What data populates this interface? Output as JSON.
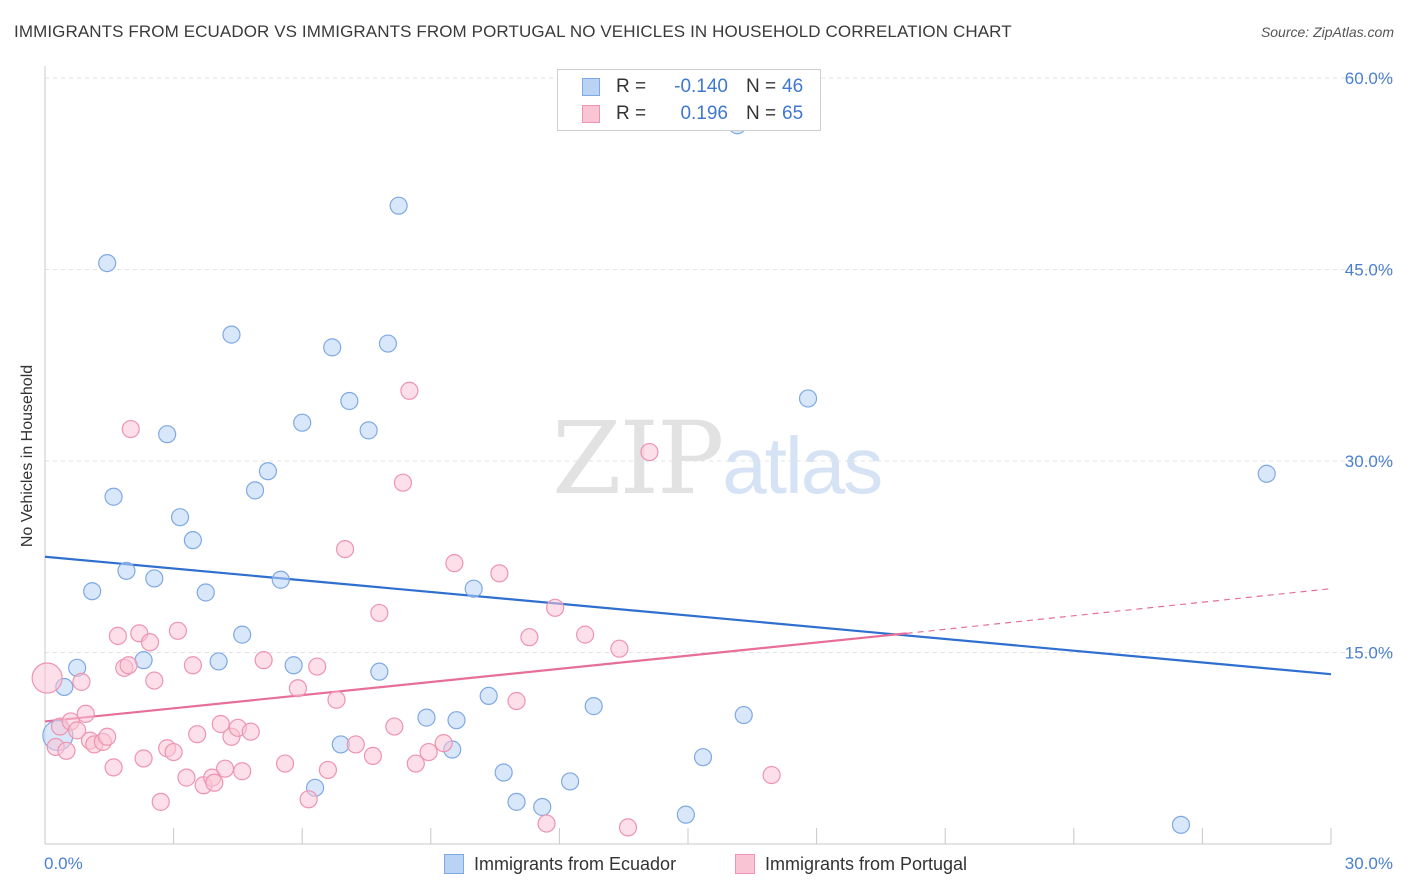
{
  "header": {
    "title": "IMMIGRANTS FROM ECUADOR VS IMMIGRANTS FROM PORTUGAL NO VEHICLES IN HOUSEHOLD CORRELATION CHART",
    "source": "Source: ZipAtlas.com"
  },
  "watermark": {
    "part1": "ZIP",
    "part2": "atlas"
  },
  "legend": {
    "rows": [
      {
        "r_label": "R =",
        "r_value": "-0.140",
        "n_label": "N =",
        "n_value": "46"
      },
      {
        "r_label": "R =",
        "r_value": "0.196",
        "n_label": "N =",
        "n_value": "65"
      }
    ]
  },
  "bottom_legend": {
    "items": [
      {
        "label": "Immigrants from Ecuador"
      },
      {
        "label": "Immigrants from Portugal"
      }
    ]
  },
  "colors": {
    "ecuador_fill": "#b9d3f5",
    "ecuador_stroke": "#7fa9e4",
    "ecuador_line": "#2f6fcf",
    "portugal_fill": "#f9c5d5",
    "portugal_stroke": "#ee94b1",
    "portugal_line": "#e76f97",
    "tick_text": "#4a7fd0",
    "grid": "#e3e3e3"
  },
  "chart_data": {
    "type": "scatter",
    "title": "IMMIGRANTS FROM ECUADOR VS IMMIGRANTS FROM PORTUGAL NO VEHICLES IN HOUSEHOLD CORRELATION CHART",
    "xlabel": "",
    "ylabel": "No Vehicles in Household",
    "xlim": [
      0,
      30
    ],
    "ylim": [
      0,
      60
    ],
    "x_tick_labels": [
      "0.0%",
      "30.0%"
    ],
    "y_ticks": [
      15,
      30,
      45,
      60
    ],
    "y_tick_labels": [
      "15.0%",
      "30.0%",
      "45.0%",
      "60.0%"
    ],
    "grid": true,
    "legend_position": "top-center",
    "series": [
      {
        "name": "Immigrants from Ecuador",
        "r": -0.14,
        "n": 46,
        "trend": {
          "x": [
            0,
            30
          ],
          "y": [
            22.5,
            13.3
          ]
        },
        "points": [
          [
            0.3,
            8.5
          ],
          [
            0.45,
            12.3
          ],
          [
            0.75,
            13.8
          ],
          [
            1.1,
            19.8
          ],
          [
            1.45,
            45.5
          ],
          [
            1.6,
            27.2
          ],
          [
            1.9,
            21.4
          ],
          [
            2.3,
            14.4
          ],
          [
            2.55,
            20.8
          ],
          [
            2.85,
            32.1
          ],
          [
            3.15,
            25.6
          ],
          [
            3.45,
            23.8
          ],
          [
            3.75,
            19.7
          ],
          [
            4.05,
            14.3
          ],
          [
            4.35,
            39.9
          ],
          [
            4.6,
            16.4
          ],
          [
            4.9,
            27.7
          ],
          [
            5.2,
            29.2
          ],
          [
            5.5,
            20.7
          ],
          [
            5.8,
            14.0
          ],
          [
            6.0,
            33.0
          ],
          [
            6.3,
            4.4
          ],
          [
            6.7,
            38.9
          ],
          [
            6.9,
            7.8
          ],
          [
            7.1,
            34.7
          ],
          [
            7.55,
            32.4
          ],
          [
            7.8,
            13.5
          ],
          [
            8.0,
            39.2
          ],
          [
            8.25,
            50.0
          ],
          [
            8.9,
            9.9
          ],
          [
            9.5,
            7.4
          ],
          [
            9.6,
            9.7
          ],
          [
            10.0,
            20.0
          ],
          [
            10.35,
            11.6
          ],
          [
            10.7,
            5.6
          ],
          [
            11.0,
            3.3
          ],
          [
            11.6,
            2.9
          ],
          [
            12.25,
            4.9
          ],
          [
            12.8,
            10.8
          ],
          [
            14.95,
            2.3
          ],
          [
            15.35,
            6.8
          ],
          [
            16.15,
            56.3
          ],
          [
            16.3,
            10.1
          ],
          [
            17.8,
            34.9
          ],
          [
            26.5,
            1.5
          ],
          [
            28.5,
            29.0
          ]
        ]
      },
      {
        "name": "Immigrants from Portugal",
        "r": 0.196,
        "n": 65,
        "trend": {
          "x": [
            0,
            20.1
          ],
          "y": [
            9.6,
            16.5
          ]
        },
        "trend_extension": {
          "x": [
            20.1,
            30
          ],
          "y": [
            16.5,
            20.0
          ]
        },
        "points": [
          [
            0.05,
            13.0
          ],
          [
            0.25,
            7.6
          ],
          [
            0.35,
            9.2
          ],
          [
            0.5,
            7.3
          ],
          [
            0.6,
            9.6
          ],
          [
            0.75,
            8.9
          ],
          [
            0.85,
            12.7
          ],
          [
            0.95,
            10.2
          ],
          [
            1.05,
            8.1
          ],
          [
            1.15,
            7.8
          ],
          [
            1.35,
            8.0
          ],
          [
            1.45,
            8.4
          ],
          [
            1.6,
            6.0
          ],
          [
            1.7,
            16.3
          ],
          [
            1.85,
            13.8
          ],
          [
            1.95,
            14.0
          ],
          [
            2.0,
            32.5
          ],
          [
            2.2,
            16.5
          ],
          [
            2.3,
            6.7
          ],
          [
            2.45,
            15.8
          ],
          [
            2.55,
            12.8
          ],
          [
            2.7,
            3.3
          ],
          [
            2.85,
            7.5
          ],
          [
            3.0,
            7.2
          ],
          [
            3.1,
            16.7
          ],
          [
            3.3,
            5.2
          ],
          [
            3.45,
            14.0
          ],
          [
            3.55,
            8.6
          ],
          [
            3.7,
            4.6
          ],
          [
            3.9,
            5.2
          ],
          [
            3.95,
            4.8
          ],
          [
            4.1,
            9.4
          ],
          [
            4.2,
            5.9
          ],
          [
            4.35,
            8.4
          ],
          [
            4.5,
            9.1
          ],
          [
            4.6,
            5.7
          ],
          [
            4.8,
            8.8
          ],
          [
            5.1,
            14.4
          ],
          [
            5.6,
            6.3
          ],
          [
            5.9,
            12.2
          ],
          [
            6.15,
            3.5
          ],
          [
            6.35,
            13.9
          ],
          [
            6.6,
            5.8
          ],
          [
            6.8,
            11.3
          ],
          [
            7.0,
            23.1
          ],
          [
            7.25,
            7.8
          ],
          [
            7.65,
            6.9
          ],
          [
            7.8,
            18.1
          ],
          [
            8.15,
            9.2
          ],
          [
            8.35,
            28.3
          ],
          [
            8.5,
            35.5
          ],
          [
            8.65,
            6.3
          ],
          [
            8.95,
            7.2
          ],
          [
            9.3,
            7.9
          ],
          [
            9.55,
            22.0
          ],
          [
            10.6,
            21.2
          ],
          [
            11.0,
            11.2
          ],
          [
            11.3,
            16.2
          ],
          [
            11.7,
            1.6
          ],
          [
            11.9,
            18.5
          ],
          [
            12.6,
            16.4
          ],
          [
            13.4,
            15.3
          ],
          [
            13.6,
            1.3
          ],
          [
            14.1,
            30.7
          ],
          [
            16.95,
            5.4
          ]
        ]
      }
    ]
  }
}
